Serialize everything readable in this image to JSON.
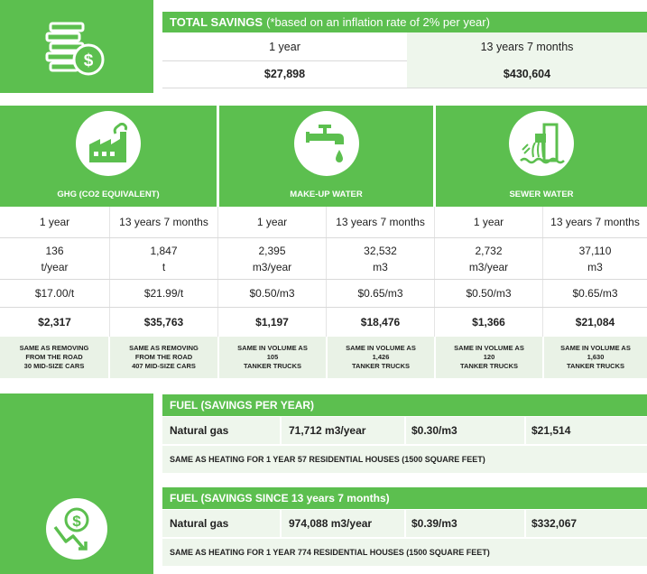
{
  "colors": {
    "green": "#5cbf4f",
    "light_green": "#eef6ec"
  },
  "total_savings": {
    "title_bold": "TOTAL SAVINGS",
    "title_note": "(*based on an inflation rate of 2% per year)",
    "headers": [
      "1 year",
      "13 years 7 months"
    ],
    "values": [
      "$27,898",
      "$430,604"
    ],
    "icon": "coin-stack-dollar-icon"
  },
  "categories": [
    {
      "icon": "factory-icon",
      "label": "GHG (CO2 EQUIVALENT)",
      "headers": [
        "1 year",
        "13 years 7 months"
      ],
      "quantity_values": [
        "136",
        "1,847"
      ],
      "quantity_units": [
        "t/year",
        "t"
      ],
      "rates": [
        "$17.00/t",
        "$21.99/t"
      ],
      "savings": [
        "$2,317",
        "$35,763"
      ],
      "notes": [
        [
          "SAME AS REMOVING",
          "FROM THE ROAD",
          "30 MID-SIZE CARS"
        ],
        [
          "SAME AS REMOVING",
          "FROM THE ROAD",
          "407 MID-SIZE CARS"
        ]
      ]
    },
    {
      "icon": "faucet-drop-icon",
      "label": "MAKE-UP WATER",
      "headers": [
        "1 year",
        "13 years 7 months"
      ],
      "quantity_values": [
        "2,395",
        "32,532"
      ],
      "quantity_units": [
        "m3/year",
        "m3"
      ],
      "rates": [
        "$0.50/m3",
        "$0.65/m3"
      ],
      "savings": [
        "$1,197",
        "$18,476"
      ],
      "notes": [
        [
          "SAME IN VOLUME AS",
          "105",
          "TANKER TRUCKS"
        ],
        [
          "SAME IN VOLUME AS",
          "1,426",
          "TANKER TRUCKS"
        ]
      ]
    },
    {
      "icon": "sewer-pipe-icon",
      "label": "SEWER WATER",
      "headers": [
        "1 year",
        "13 years 7 months"
      ],
      "quantity_values": [
        "2,732",
        "37,110"
      ],
      "quantity_units": [
        "m3/year",
        "m3"
      ],
      "rates": [
        "$0.50/m3",
        "$0.65/m3"
      ],
      "savings": [
        "$1,366",
        "$21,084"
      ],
      "notes": [
        [
          "SAME IN VOLUME AS",
          "120",
          "TANKER TRUCKS"
        ],
        [
          "SAME IN VOLUME AS",
          "1,630",
          "TANKER TRUCKS"
        ]
      ]
    }
  ],
  "fuel": {
    "icon": "dollar-decline-icon",
    "per_year": {
      "title": "FUEL (SAVINGS PER YEAR)",
      "fuel_type": "Natural gas",
      "quantity": "71,712 m3/year",
      "rate": "$0.30/m3",
      "savings": "$21,514",
      "note": "SAME AS HEATING FOR 1 YEAR 57 RESIDENTIAL HOUSES (1500 SQUARE FEET)"
    },
    "since": {
      "title": "FUEL (SAVINGS SINCE 13 years 7 months)",
      "fuel_type": "Natural gas",
      "quantity": "974,088 m3/year",
      "rate": "$0.39/m3",
      "savings": "$332,067",
      "note": "SAME AS HEATING FOR 1 YEAR 774 RESIDENTIAL HOUSES (1500 SQUARE FEET)"
    }
  }
}
